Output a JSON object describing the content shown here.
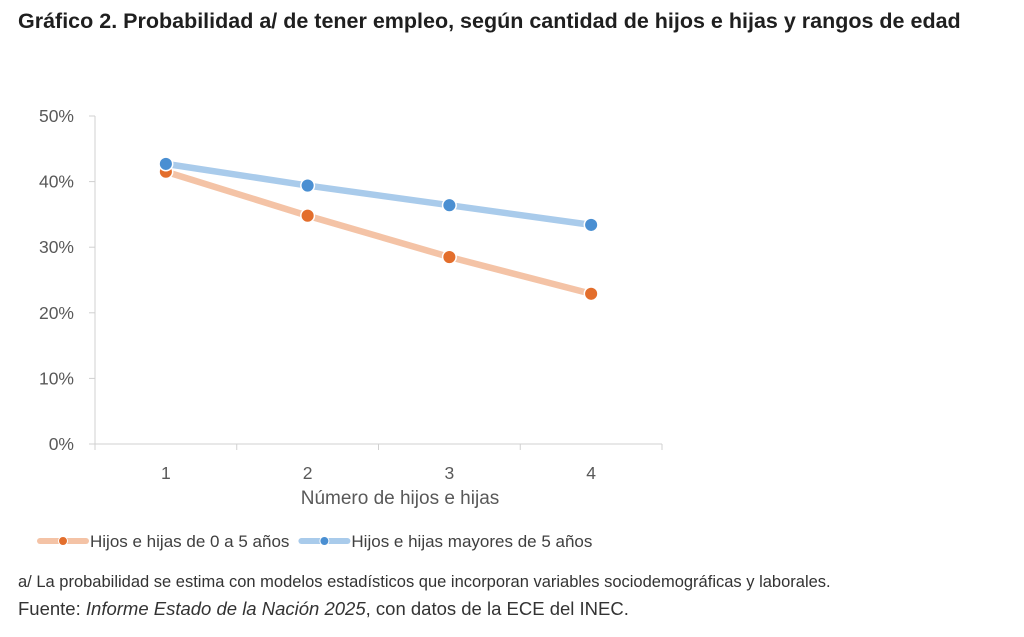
{
  "title": "Gráfico 2. Probabilidad a/ de tener empleo, según cantidad de hijos e hijas y rangos de edad",
  "note": "a/ La probabilidad se estima con modelos estadísticos que incorporan variables sociodemográficas y laborales.",
  "source": {
    "prefix": "Fuente: ",
    "italic": "Informe Estado de la Nación 2025",
    "suffix": ", con datos de la ECE del INEC."
  },
  "chart_data": {
    "type": "line",
    "title": "",
    "xlabel": "Número de hijos e hijas",
    "ylabel": "",
    "x": [
      "1",
      "2",
      "3",
      "4"
    ],
    "ylim": [
      0,
      0.5
    ],
    "yticks": [
      "0%",
      "10%",
      "20%",
      "30%",
      "40%",
      "50%"
    ],
    "grid": false,
    "legend_position": "bottom",
    "series": [
      {
        "name": "Hijos e hijas de 0 a 5 años",
        "values": [
          0.415,
          0.348,
          0.285,
          0.229
        ],
        "line_color": "#F4C3A6",
        "marker_color": "#E36E2C"
      },
      {
        "name": "Hijos e hijas mayores de 5 años",
        "values": [
          0.427,
          0.394,
          0.364,
          0.334
        ],
        "line_color": "#A9CBEB",
        "marker_color": "#4A8FD2"
      }
    ]
  }
}
